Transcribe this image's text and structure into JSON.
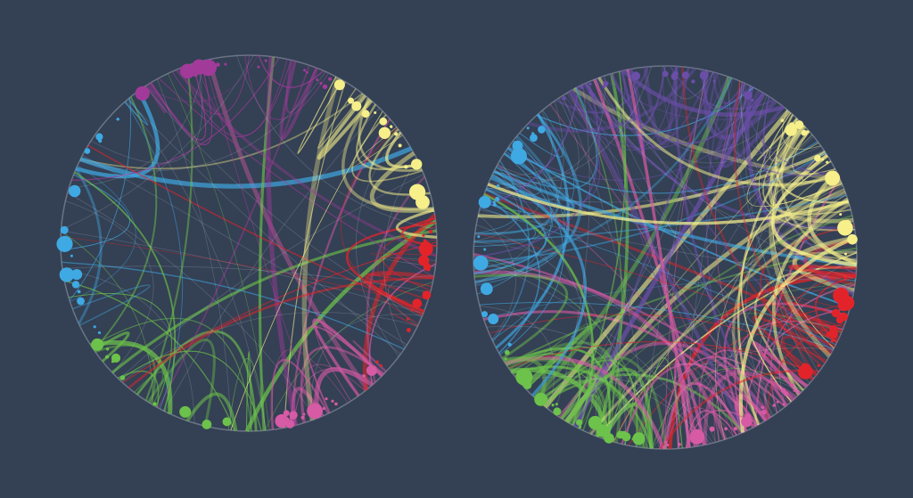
{
  "background_color": "#344054",
  "palette": {
    "blue": "#3fa9e3",
    "purple": "#a23a9a",
    "yellow": "#f6ef8a",
    "red": "#e2242a",
    "pink": "#d65aa4",
    "green": "#6cc24a",
    "violet": "#6a4ea8"
  },
  "diagrams": [
    {
      "name": "left-network-circle",
      "segments": [
        "purple",
        "yellow",
        "red",
        "pink",
        "green",
        "blue"
      ]
    },
    {
      "name": "right-network-circle",
      "segments": [
        "violet",
        "yellow",
        "red",
        "pink",
        "green",
        "blue"
      ]
    }
  ]
}
